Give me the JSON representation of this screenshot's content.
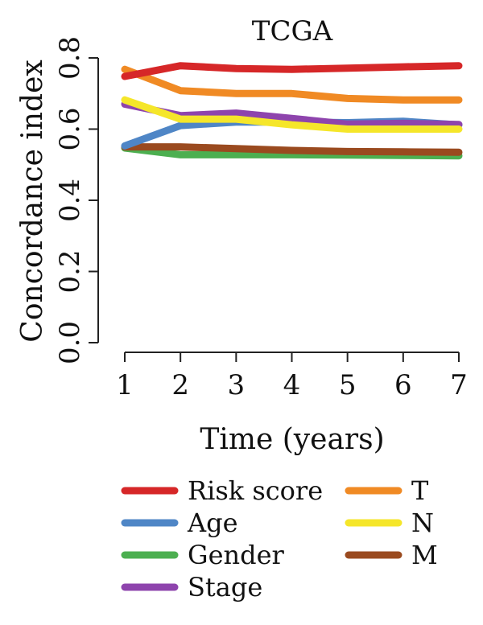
{
  "chart_data": {
    "type": "line",
    "title": "TCGA",
    "xlabel": "Time (years)",
    "ylabel": "Concordance index",
    "x": [
      1,
      2,
      3,
      4,
      5,
      6,
      7
    ],
    "xticks": [
      "1",
      "2",
      "3",
      "4",
      "5",
      "6",
      "7"
    ],
    "yticks": [
      "0.0",
      "0.2",
      "0.4",
      "0.6",
      "0.8"
    ],
    "xlim": [
      1,
      7
    ],
    "ylim": [
      0,
      0.8
    ],
    "grid": false,
    "legend_position": "bottom",
    "series": [
      {
        "name": "Risk score",
        "color": "#d62728",
        "values": [
          0.748,
          0.778,
          0.77,
          0.768,
          0.771,
          0.775,
          0.778
        ]
      },
      {
        "name": "Age",
        "color": "#4f86c6",
        "values": [
          0.553,
          0.61,
          0.62,
          0.62,
          0.618,
          0.622,
          0.612
        ]
      },
      {
        "name": "Gender",
        "color": "#4caf50",
        "values": [
          0.547,
          0.528,
          0.528,
          0.528,
          0.527,
          0.526,
          0.525
        ]
      },
      {
        "name": "Stage",
        "color": "#8e44ad",
        "values": [
          0.67,
          0.638,
          0.645,
          0.63,
          0.614,
          0.616,
          0.613
        ]
      },
      {
        "name": "T",
        "color": "#f08a24",
        "values": [
          0.768,
          0.708,
          0.7,
          0.7,
          0.686,
          0.682,
          0.682
        ]
      },
      {
        "name": "N",
        "color": "#f5e62a",
        "values": [
          0.682,
          0.628,
          0.628,
          0.612,
          0.6,
          0.6,
          0.6
        ]
      },
      {
        "name": "M",
        "color": "#9a4a1f",
        "values": [
          0.55,
          0.55,
          0.545,
          0.54,
          0.537,
          0.536,
          0.535
        ]
      }
    ],
    "legend_columns": [
      [
        "Risk score",
        "Age",
        "Gender",
        "Stage"
      ],
      [
        "T",
        "N",
        "M"
      ]
    ]
  }
}
